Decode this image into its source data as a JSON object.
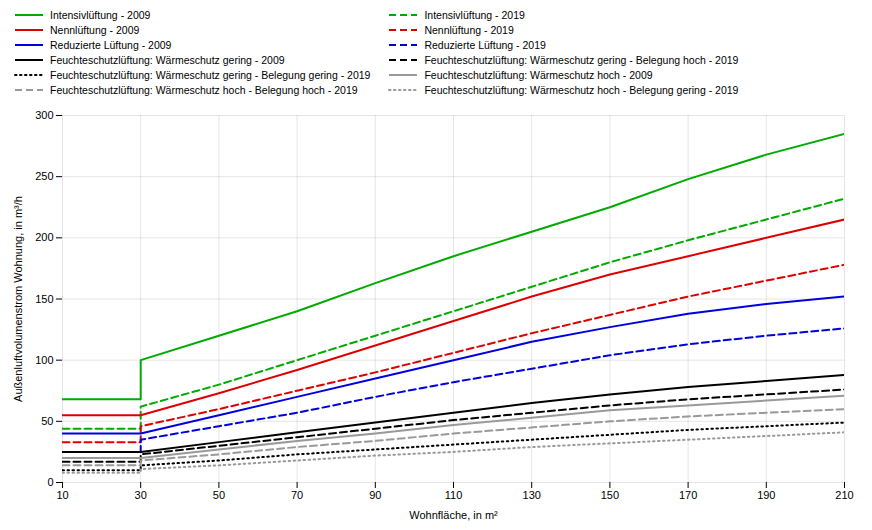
{
  "chart_data": {
    "type": "line",
    "xlabel": "Wohnfläche, in m²",
    "ylabel": "Außenluftvolumenstrom Wohnung, in m³/h",
    "xlim": [
      10,
      210
    ],
    "ylim": [
      0,
      300
    ],
    "xticks": [
      10,
      30,
      50,
      70,
      90,
      110,
      130,
      150,
      170,
      190,
      210
    ],
    "yticks": [
      0,
      50,
      100,
      150,
      200,
      250,
      300
    ],
    "grid": true,
    "legend": "upper left",
    "x": [
      10,
      30,
      30,
      50,
      70,
      90,
      110,
      130,
      150,
      170,
      190,
      210
    ],
    "series": [
      {
        "name": "Intensivlüftung - 2009",
        "color": "#00aa00",
        "line_style": "solid",
        "values": [
          68,
          68,
          100,
          120,
          140,
          163,
          185,
          205,
          225,
          248,
          268,
          285
        ]
      },
      {
        "name": "Intensivlüftung - 2019",
        "color": "#00aa00",
        "line_style": "dashed",
        "values": [
          44,
          44,
          62,
          80,
          100,
          120,
          140,
          160,
          180,
          198,
          215,
          232
        ]
      },
      {
        "name": "Nennlüftung - 2009",
        "color": "#dd0000",
        "line_style": "solid",
        "values": [
          55,
          55,
          55,
          73,
          92,
          112,
          132,
          152,
          170,
          185,
          200,
          215
        ]
      },
      {
        "name": "Nennlüftung - 2019",
        "color": "#dd0000",
        "line_style": "dashed",
        "values": [
          33,
          33,
          46,
          60,
          75,
          90,
          106,
          122,
          137,
          152,
          165,
          178
        ]
      },
      {
        "name": "Reduzierte Lüftung - 2009",
        "color": "#0000dd",
        "line_style": "solid",
        "values": [
          40,
          40,
          40,
          55,
          70,
          85,
          100,
          115,
          127,
          138,
          146,
          152
        ]
      },
      {
        "name": "Reduzierte Lüftung - 2019",
        "color": "#0000dd",
        "line_style": "dashed",
        "values": [
          25,
          25,
          35,
          46,
          57,
          70,
          82,
          93,
          104,
          113,
          120,
          126
        ]
      },
      {
        "name": "Feuchteschutzlüftung: Wärmeschutz gering - 2009",
        "color": "#000000",
        "line_style": "solid",
        "values": [
          25,
          25,
          25,
          33,
          41,
          49,
          57,
          65,
          72,
          78,
          83,
          88
        ]
      },
      {
        "name": "Feuchteschutzlüftung: Wärmeschutz gering - Belegung hoch - 2019",
        "color": "#000000",
        "line_style": "dashed",
        "values": [
          17,
          17,
          23,
          30,
          37,
          44,
          51,
          57,
          63,
          68,
          72,
          76
        ]
      },
      {
        "name": "Feuchteschutzlüftung: Wärmeschutz gering - Belegung gering - 2019",
        "color": "#000000",
        "line_style": "dotted",
        "values": [
          10,
          10,
          14,
          18,
          23,
          27,
          31,
          35,
          39,
          43,
          46,
          49
        ]
      },
      {
        "name": "Feuchteschutzlüftung: Wärmeschutz hoch - 2009",
        "color": "#999999",
        "line_style": "solid",
        "values": [
          20,
          20,
          20,
          27,
          34,
          40,
          47,
          53,
          59,
          63,
          67,
          71
        ]
      },
      {
        "name": "Feuchteschutzlüftung: Wärmeschutz hoch - Belegung hoch - 2019",
        "color": "#999999",
        "line_style": "dashed",
        "values": [
          14,
          14,
          18,
          23,
          29,
          34,
          40,
          45,
          50,
          54,
          57,
          60
        ]
      },
      {
        "name": "Feuchteschutzlüftung: Wärmeschutz hoch - Belegung gering - 2019",
        "color": "#999999",
        "line_style": "dotted",
        "values": [
          8,
          8,
          11,
          14,
          18,
          22,
          25,
          29,
          32,
          35,
          38,
          41
        ]
      }
    ]
  }
}
